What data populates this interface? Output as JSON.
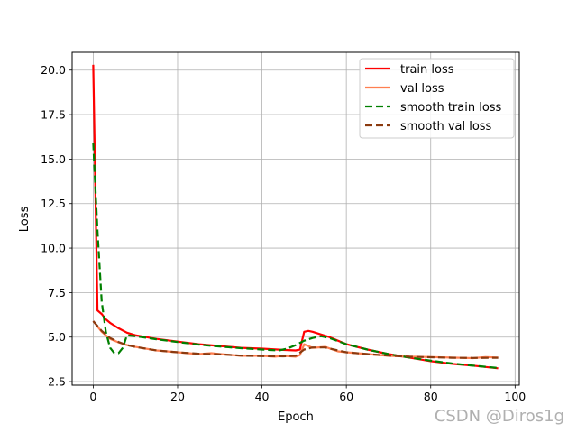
{
  "chart_data": {
    "type": "line",
    "xlabel": "Epoch",
    "ylabel": "Loss",
    "xlim": [
      -5,
      101
    ],
    "ylim": [
      2.3,
      21.0
    ],
    "xticks": [
      0,
      20,
      40,
      60,
      80,
      100
    ],
    "yticks": [
      2.5,
      5.0,
      7.5,
      10.0,
      12.5,
      15.0,
      17.5,
      20.0
    ],
    "xtick_labels": [
      "0",
      "20",
      "40",
      "60",
      "80",
      "100"
    ],
    "ytick_labels": [
      "2.5",
      "5.0",
      "7.5",
      "10.0",
      "12.5",
      "15.0",
      "17.5",
      "20.0"
    ],
    "grid": true,
    "legend_position": "top-right",
    "series": [
      {
        "name": "train loss",
        "color": "#ff0000",
        "style": "solid",
        "points": [
          [
            0,
            20.3
          ],
          [
            1,
            6.5
          ],
          [
            2,
            6.3
          ],
          [
            3,
            6.0
          ],
          [
            4,
            5.8
          ],
          [
            6,
            5.5
          ],
          [
            8,
            5.25
          ],
          [
            10,
            5.1
          ],
          [
            15,
            4.9
          ],
          [
            20,
            4.75
          ],
          [
            25,
            4.6
          ],
          [
            30,
            4.5
          ],
          [
            35,
            4.4
          ],
          [
            40,
            4.35
          ],
          [
            45,
            4.28
          ],
          [
            48,
            4.25
          ],
          [
            49,
            4.3
          ],
          [
            50,
            5.3
          ],
          [
            51,
            5.35
          ],
          [
            52,
            5.3
          ],
          [
            54,
            5.15
          ],
          [
            56,
            5.0
          ],
          [
            60,
            4.6
          ],
          [
            65,
            4.3
          ],
          [
            70,
            4.05
          ],
          [
            75,
            3.85
          ],
          [
            80,
            3.65
          ],
          [
            85,
            3.5
          ],
          [
            90,
            3.4
          ],
          [
            96,
            3.25
          ]
        ]
      },
      {
        "name": "val loss",
        "color": "#ff7f50",
        "style": "solid",
        "points": [
          [
            0,
            5.9
          ],
          [
            2,
            5.3
          ],
          [
            4,
            4.9
          ],
          [
            6,
            4.7
          ],
          [
            8,
            4.55
          ],
          [
            10,
            4.45
          ],
          [
            15,
            4.25
          ],
          [
            20,
            4.15
          ],
          [
            25,
            4.05
          ],
          [
            28,
            4.1
          ],
          [
            30,
            4.05
          ],
          [
            35,
            3.95
          ],
          [
            40,
            3.95
          ],
          [
            43,
            3.9
          ],
          [
            45,
            3.95
          ],
          [
            48,
            3.9
          ],
          [
            49,
            4.0
          ],
          [
            50,
            4.6
          ],
          [
            51,
            4.5
          ],
          [
            52,
            4.4
          ],
          [
            55,
            4.45
          ],
          [
            58,
            4.2
          ],
          [
            60,
            4.15
          ],
          [
            65,
            4.05
          ],
          [
            70,
            3.95
          ],
          [
            75,
            3.9
          ],
          [
            80,
            3.88
          ],
          [
            85,
            3.85
          ],
          [
            90,
            3.82
          ],
          [
            93,
            3.88
          ],
          [
            96,
            3.85
          ]
        ]
      },
      {
        "name": "smooth train loss",
        "color": "#008000",
        "style": "dashed",
        "points": [
          [
            0,
            15.9
          ],
          [
            1,
            11.0
          ],
          [
            2,
            7.0
          ],
          [
            3,
            5.3
          ],
          [
            4,
            4.4
          ],
          [
            5,
            4.1
          ],
          [
            6,
            4.1
          ],
          [
            7,
            4.4
          ],
          [
            8,
            5.1
          ],
          [
            10,
            5.05
          ],
          [
            15,
            4.88
          ],
          [
            20,
            4.72
          ],
          [
            25,
            4.58
          ],
          [
            30,
            4.47
          ],
          [
            35,
            4.38
          ],
          [
            40,
            4.3
          ],
          [
            44,
            4.25
          ],
          [
            46,
            4.35
          ],
          [
            48,
            4.55
          ],
          [
            50,
            4.8
          ],
          [
            52,
            4.95
          ],
          [
            54,
            5.05
          ],
          [
            56,
            4.95
          ],
          [
            60,
            4.6
          ],
          [
            65,
            4.3
          ],
          [
            70,
            4.05
          ],
          [
            75,
            3.85
          ],
          [
            80,
            3.68
          ],
          [
            85,
            3.52
          ],
          [
            90,
            3.4
          ],
          [
            96,
            3.27
          ]
        ]
      },
      {
        "name": "smooth val loss",
        "color": "#8b3a0f",
        "style": "dashed",
        "points": [
          [
            0,
            5.9
          ],
          [
            2,
            5.35
          ],
          [
            4,
            4.95
          ],
          [
            6,
            4.72
          ],
          [
            8,
            4.55
          ],
          [
            10,
            4.45
          ],
          [
            15,
            4.25
          ],
          [
            20,
            4.15
          ],
          [
            25,
            4.07
          ],
          [
            30,
            4.04
          ],
          [
            35,
            3.96
          ],
          [
            40,
            3.93
          ],
          [
            45,
            3.92
          ],
          [
            48,
            3.95
          ],
          [
            50,
            4.3
          ],
          [
            52,
            4.42
          ],
          [
            55,
            4.42
          ],
          [
            58,
            4.25
          ],
          [
            60,
            4.15
          ],
          [
            65,
            4.05
          ],
          [
            70,
            3.96
          ],
          [
            75,
            3.9
          ],
          [
            80,
            3.87
          ],
          [
            85,
            3.84
          ],
          [
            90,
            3.83
          ],
          [
            96,
            3.84
          ]
        ]
      }
    ]
  },
  "watermark": "CSDN @Diros1g"
}
